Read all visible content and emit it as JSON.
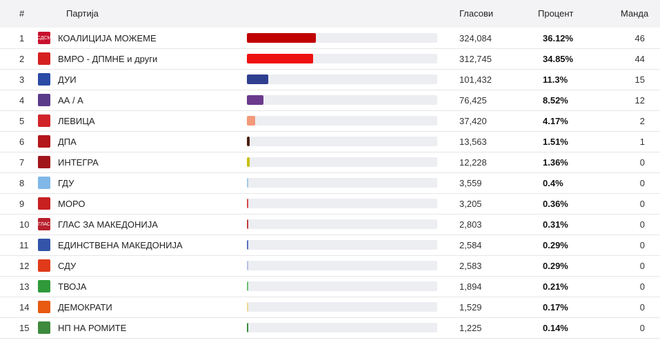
{
  "headers": {
    "num": "#",
    "party": "Партија",
    "votes": "Гласови",
    "percent": "Процент",
    "seats": "Манда"
  },
  "rows": [
    {
      "num": "1",
      "name": "КОАЛИЦИЈА МОЖЕМЕ",
      "votes": "324,084",
      "percent": "36.12%",
      "seats": "46",
      "share": 0.3612,
      "color": "#c00000",
      "logo_color": "#c8102e",
      "logo_text": "СДСМ"
    },
    {
      "num": "2",
      "name": "ВМРО - ДПМНЕ и други",
      "votes": "312,745",
      "percent": "34.85%",
      "seats": "44",
      "share": 0.3485,
      "color": "#ee1111",
      "logo_color": "#d62020",
      "logo_text": ""
    },
    {
      "num": "3",
      "name": "ДУИ",
      "votes": "101,432",
      "percent": "11.3%",
      "seats": "15",
      "share": 0.113,
      "color": "#2f3f8f",
      "logo_color": "#2a4aa5",
      "logo_text": ""
    },
    {
      "num": "4",
      "name": "АА / А",
      "votes": "76,425",
      "percent": "8.52%",
      "seats": "12",
      "share": 0.0852,
      "color": "#6b3a8c",
      "logo_color": "#5a3b8a",
      "logo_text": ""
    },
    {
      "num": "5",
      "name": "ЛЕВИЦА",
      "votes": "37,420",
      "percent": "4.17%",
      "seats": "2",
      "share": 0.0417,
      "color": "#f29a7a",
      "logo_color": "#d1242a",
      "logo_text": ""
    },
    {
      "num": "6",
      "name": "ДПА",
      "votes": "13,563",
      "percent": "1.51%",
      "seats": "1",
      "share": 0.0151,
      "color": "#4a1f10",
      "logo_color": "#b3161b",
      "logo_text": ""
    },
    {
      "num": "7",
      "name": "ИНТЕГРА",
      "votes": "12,228",
      "percent": "1.36%",
      "seats": "0",
      "share": 0.0136,
      "color": "#c8c010",
      "logo_color": "#a1161b",
      "logo_text": ""
    },
    {
      "num": "8",
      "name": "ГДУ",
      "votes": "3,559",
      "percent": "0.4%",
      "seats": "0",
      "share": 0.004,
      "color": "#9fc8e8",
      "logo_color": "#7fb8e8",
      "logo_text": ""
    },
    {
      "num": "9",
      "name": "МОРО",
      "votes": "3,205",
      "percent": "0.36%",
      "seats": "0",
      "share": 0.0036,
      "color": "#d44a4a",
      "logo_color": "#c82020",
      "logo_text": ""
    },
    {
      "num": "10",
      "name": "ГЛАС ЗА МАКЕДОНИЈА",
      "votes": "2,803",
      "percent": "0.31%",
      "seats": "0",
      "share": 0.0031,
      "color": "#c23b3b",
      "logo_color": "#b81f2d",
      "logo_text": "ГЛАС"
    },
    {
      "num": "11",
      "name": "ЕДИНСТВЕНА МАКЕДОНИЈА",
      "votes": "2,584",
      "percent": "0.29%",
      "seats": "0",
      "share": 0.0029,
      "color": "#5a6fc0",
      "logo_color": "#3354a8",
      "logo_text": ""
    },
    {
      "num": "12",
      "name": "СДУ",
      "votes": "2,583",
      "percent": "0.29%",
      "seats": "0",
      "share": 0.0029,
      "color": "#b8c0e8",
      "logo_color": "#e03a1a",
      "logo_text": ""
    },
    {
      "num": "13",
      "name": "ТВОЈА",
      "votes": "1,894",
      "percent": "0.21%",
      "seats": "0",
      "share": 0.0021,
      "color": "#6cc06c",
      "logo_color": "#2e9a3a",
      "logo_text": ""
    },
    {
      "num": "14",
      "name": "ДЕМОКРАТИ",
      "votes": "1,529",
      "percent": "0.17%",
      "seats": "0",
      "share": 0.0017,
      "color": "#f0d890",
      "logo_color": "#e85a10",
      "logo_text": ""
    },
    {
      "num": "15",
      "name": "НП НА РОМИТЕ",
      "votes": "1,225",
      "percent": "0.14%",
      "seats": "0",
      "share": 0.0014,
      "color": "#3a8a3a",
      "logo_color": "#3e8a3e",
      "logo_text": ""
    }
  ]
}
